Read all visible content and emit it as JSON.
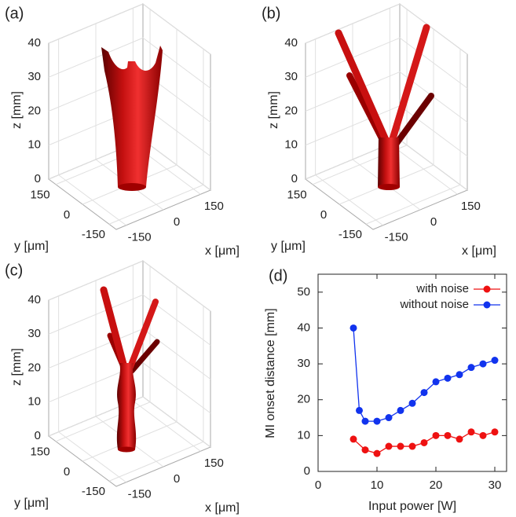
{
  "chart_data": [
    {
      "type": "surface3d",
      "label": "(a)",
      "zlabel": "z [mm]",
      "xlabel": "x [μm]",
      "ylabel": "y [μm]",
      "zlim": [
        0,
        40
      ],
      "zticks": [
        0,
        10,
        20,
        30,
        40
      ],
      "xlim": [
        -190,
        190
      ],
      "xticks": [
        -150,
        0,
        150
      ],
      "ylim": [
        -190,
        190
      ],
      "yticks": [
        -150,
        0,
        150
      ]
    },
    {
      "type": "surface3d",
      "label": "(b)",
      "zlabel": "z [mm]",
      "xlabel": "x [μm]",
      "ylabel": "y [μm]",
      "zlim": [
        0,
        40
      ],
      "zticks": [
        0,
        10,
        20,
        30,
        40
      ],
      "xlim": [
        -190,
        190
      ],
      "xticks": [
        -150,
        0,
        150
      ],
      "ylim": [
        -190,
        190
      ],
      "yticks": [
        -150,
        0,
        150
      ]
    },
    {
      "type": "surface3d",
      "label": "(c)",
      "zlabel": "z [mm]",
      "xlabel": "x [μm]",
      "ylabel": "y [μm]",
      "zlim": [
        0,
        40
      ],
      "zticks": [
        0,
        10,
        20,
        30,
        40
      ],
      "xlim": [
        -190,
        190
      ],
      "xticks": [
        -150,
        0,
        150
      ],
      "ylim": [
        -190,
        190
      ],
      "yticks": [
        -150,
        0,
        150
      ]
    },
    {
      "type": "line",
      "label": "(d)",
      "xlabel": "Input power [W]",
      "ylabel": "MI onset distance [mm]",
      "xlim": [
        0,
        32
      ],
      "xticks": [
        0,
        10,
        20,
        30
      ],
      "ylim": [
        0,
        55
      ],
      "yticks": [
        0,
        10,
        20,
        30,
        40,
        50
      ],
      "legend": "top-right",
      "series": [
        {
          "name": "with noise",
          "color": "#ee1111",
          "x": [
            6,
            8,
            10,
            12,
            14,
            16,
            18,
            20,
            22,
            24,
            26,
            28,
            30
          ],
          "values": [
            9,
            6,
            5,
            7,
            7,
            7,
            8,
            10,
            10,
            9,
            11,
            10,
            11
          ]
        },
        {
          "name": "without noise",
          "color": "#1133ee",
          "x": [
            6,
            7,
            8,
            10,
            12,
            14,
            16,
            18,
            20,
            22,
            24,
            26,
            28,
            30
          ],
          "values": [
            40,
            17,
            14,
            14,
            15,
            17,
            19,
            22,
            25,
            26,
            27,
            29,
            30,
            31
          ]
        }
      ]
    }
  ]
}
